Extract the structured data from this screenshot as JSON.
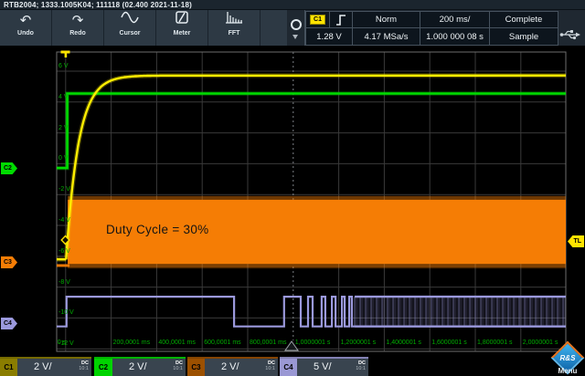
{
  "window": {
    "title_line": "RTB2004; 1333.1005K04; 111118 (02.400 2021-11-18)"
  },
  "toolbar": {
    "buttons": [
      {
        "id": "undo",
        "label": "Undo",
        "icon": "undo-arrow-icon"
      },
      {
        "id": "redo",
        "label": "Redo",
        "icon": "redo-arrow-icon"
      },
      {
        "id": "cursor",
        "label": "Cursor",
        "icon": "sine-wave-icon"
      },
      {
        "id": "meter",
        "label": "Meter",
        "icon": "multimeter-icon"
      },
      {
        "id": "fft",
        "label": "FFT",
        "icon": "spectrum-icon"
      }
    ]
  },
  "trigger_panel": {
    "source_badge": "C1",
    "slope_icon": "rising-edge-icon",
    "mode": "Norm",
    "timebase": "200 ms/",
    "acquisition_status": "Complete",
    "level": "1.28 V",
    "sample_rate": "4.17 MSa/s",
    "horizontal_position": "1.000 000 08 s",
    "acquisition_mode": "Sample"
  },
  "graticule": {
    "volt_labels": [
      "6 V",
      "4 V",
      "2 V",
      "0 V",
      "-2 V",
      "-4 V",
      "-6 V",
      "-8 V",
      "-10 V",
      "-12 V"
    ],
    "time_labels": [
      "0 s",
      "200,0001 ms",
      "400,0001 ms",
      "600,0001 ms",
      "800,0001 ms",
      "1,0000001 s",
      "1,2000001 s",
      "1,4000001 s",
      "1,6000001 s",
      "1,8000001 s",
      "2,0000001 s"
    ],
    "annotation": "Duty Cycle = 30%"
  },
  "markers": {
    "trigger_time_label": "T",
    "trigger_level_label": "TL",
    "c2_label": "C2",
    "c3_label": "C3",
    "c4_label": "C4"
  },
  "waveforms": {
    "c1": {
      "color": "#ffee00",
      "baseline_v": -6.2,
      "settle_v": 5.72,
      "tau_s": 0.055,
      "rise_start_s": 0.002
    },
    "c2": {
      "color": "#00dc00",
      "baseline_v": -0.28,
      "high_v": 4.55,
      "step_s": 0.007
    },
    "c3": {
      "color": "#f57d05",
      "baseline_v": -6.6,
      "pwm_top_v": -2.33,
      "pwm_bottom_v": -6.5,
      "pwm_start_s": 0.009
    },
    "c4": {
      "color": "#9b99dd",
      "low_v": -10.55,
      "high_v": -8.62,
      "edges_s": [
        0.004,
        0.74,
        0.96,
        1.033,
        1.065,
        1.085,
        1.125,
        1.141,
        1.17,
        1.186,
        1.214,
        1.226,
        1.246,
        1.258
      ],
      "dense_start_s": 1.27,
      "end_s": 2.2
    }
  },
  "channel_bar": {
    "channels": [
      {
        "id": "C1",
        "scale_label": "2 V/",
        "coupling": "DC",
        "probe": "10:1",
        "tab_color": "#8a7d00"
      },
      {
        "id": "C2",
        "scale_label": "2 V/",
        "coupling": "DC",
        "probe": "10:1",
        "tab_color": "#00d400"
      },
      {
        "id": "C3",
        "scale_label": "2 V/",
        "coupling": "DC",
        "probe": "10:1",
        "tab_color": "#9c5000"
      },
      {
        "id": "C4",
        "scale_label": "5 V/",
        "coupling": "DC",
        "probe": "10:1",
        "tab_color": "#9a98d4"
      }
    ],
    "menu_label": "Menu",
    "logo_text": "R&S"
  },
  "colors": {
    "c1": "#ffee00",
    "c2": "#00dc00",
    "c3": "#f57d05",
    "c4": "#9b99dd",
    "grid": "#3a3a3a",
    "grid_label": "#00ad00",
    "trigger_marker": "#ffe400",
    "header_bg": "#2d3944",
    "cell_bg": "#0d151d",
    "panel_bg": "#39444f"
  }
}
